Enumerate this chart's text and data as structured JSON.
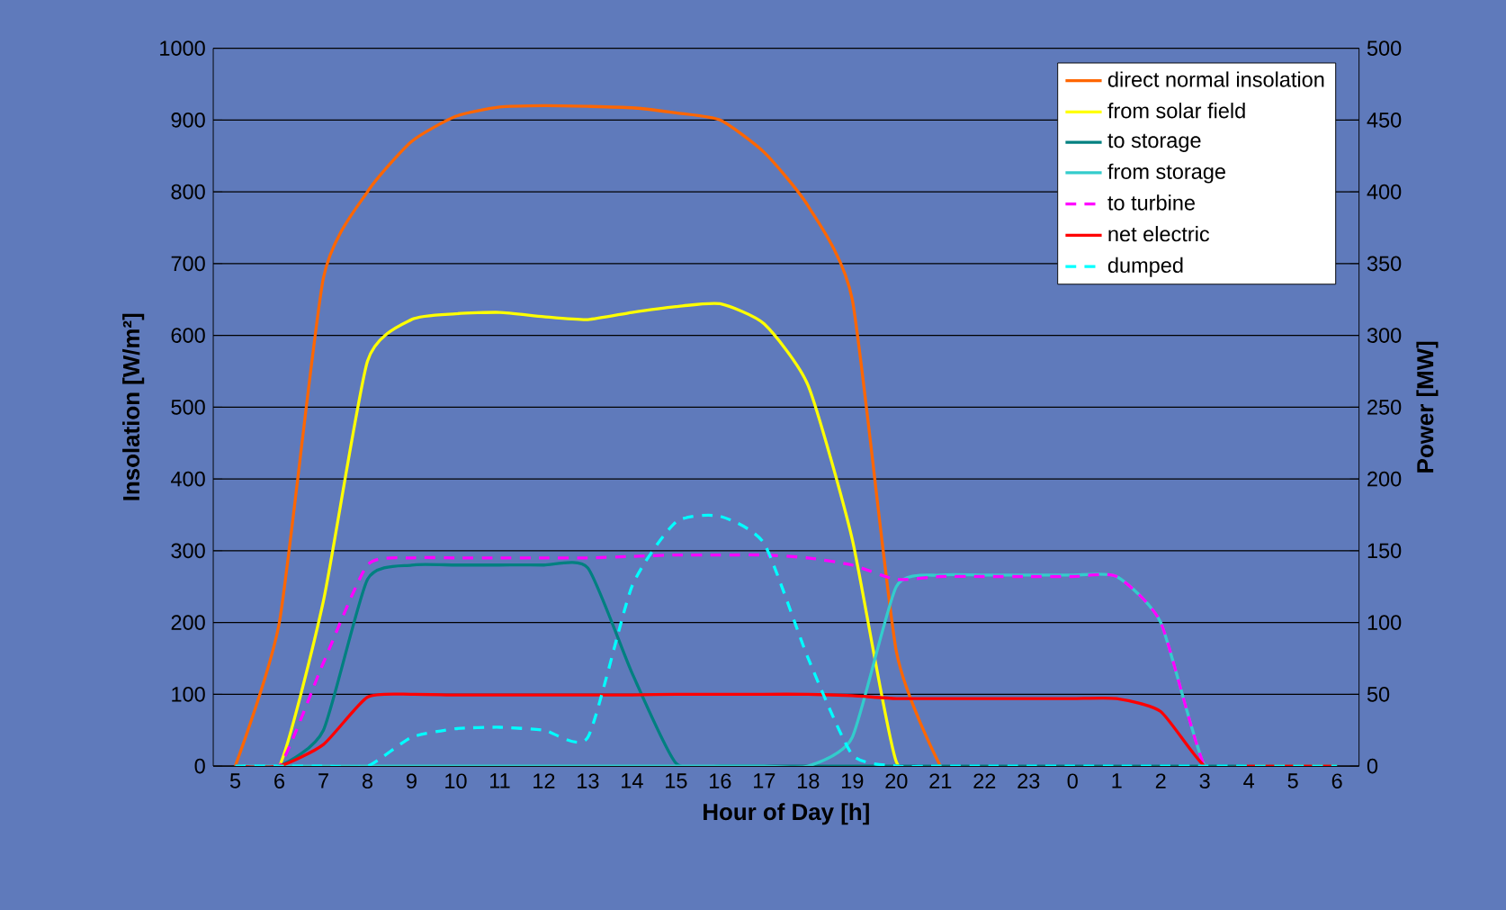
{
  "chart_data": {
    "type": "line",
    "xlabel": "Hour of Day [h]",
    "ylabel": "Insolation [W/m²]",
    "y2label": "Power [MW]",
    "categories": [
      "5",
      "6",
      "7",
      "8",
      "9",
      "10",
      "11",
      "12",
      "13",
      "14",
      "15",
      "16",
      "17",
      "18",
      "19",
      "20",
      "21",
      "22",
      "23",
      "0",
      "1",
      "2",
      "3",
      "4",
      "5",
      "6"
    ],
    "ylim": [
      0,
      1000
    ],
    "yticks": [
      0,
      100,
      200,
      300,
      400,
      500,
      600,
      700,
      800,
      900,
      1000
    ],
    "y2lim": [
      0,
      500
    ],
    "y2ticks": [
      0,
      50,
      100,
      150,
      200,
      250,
      300,
      350,
      400,
      450,
      500
    ],
    "grid": "y",
    "legend": "top right",
    "series": [
      {
        "name": "direct normal insolation",
        "color": "#ff6600",
        "values": [
          0,
          200,
          680,
          800,
          870,
          905,
          918,
          920,
          919,
          917,
          910,
          900,
          855,
          780,
          650,
          160,
          0,
          null,
          null,
          null,
          null,
          null,
          null,
          null,
          null,
          null
        ]
      },
      {
        "name": "from solar field",
        "color": "#ffff00",
        "axis": "y2",
        "values": [
          0,
          0,
          115,
          282,
          311,
          315,
          316,
          313,
          311,
          316,
          320,
          322,
          308,
          265,
          158,
          3,
          0,
          null,
          null,
          null,
          null,
          null,
          null,
          null,
          null,
          null
        ]
      },
      {
        "name": "to storage",
        "color": "#008080",
        "axis": "y2",
        "values": [
          0,
          0,
          25,
          130,
          140,
          140,
          140,
          140,
          138,
          65,
          2,
          0,
          0,
          0,
          0,
          0,
          0,
          0,
          0,
          0,
          0,
          0,
          0,
          0,
          0,
          0
        ]
      },
      {
        "name": "from storage",
        "color": "#33cccc",
        "axis": "y2",
        "values": [
          0,
          0,
          0,
          0,
          0,
          0,
          0,
          0,
          0,
          0,
          0,
          0,
          0,
          0,
          20,
          125,
          133,
          133,
          133,
          133,
          132,
          100,
          0,
          0,
          0,
          0
        ]
      },
      {
        "name": "to turbine",
        "color": "#ff00ff",
        "axis": "y2",
        "line_style": "dashed",
        "values": [
          0,
          0,
          72,
          140,
          145,
          145,
          145,
          145,
          145,
          146,
          147,
          147,
          147,
          145,
          140,
          130,
          132,
          132,
          132,
          132,
          132,
          100,
          0,
          0,
          null,
          null
        ]
      },
      {
        "name": "net electric",
        "color": "#ff0000",
        "axis": "y2",
        "values": [
          0,
          0,
          15,
          48,
          50,
          49.5,
          49.5,
          49.5,
          49.5,
          49.5,
          50,
          50,
          50,
          50,
          49,
          47,
          47,
          47,
          47,
          47,
          47,
          38,
          0,
          0,
          0,
          0
        ]
      },
      {
        "name": "dumped",
        "color": "#00ffff",
        "axis": "y2",
        "line_style": "dashed",
        "values": [
          0,
          0,
          0,
          0,
          20,
          26,
          27,
          25,
          20,
          125,
          170,
          174,
          155,
          75,
          8,
          0,
          0,
          0,
          0,
          0,
          0,
          0,
          0,
          0,
          0,
          0
        ]
      }
    ]
  }
}
